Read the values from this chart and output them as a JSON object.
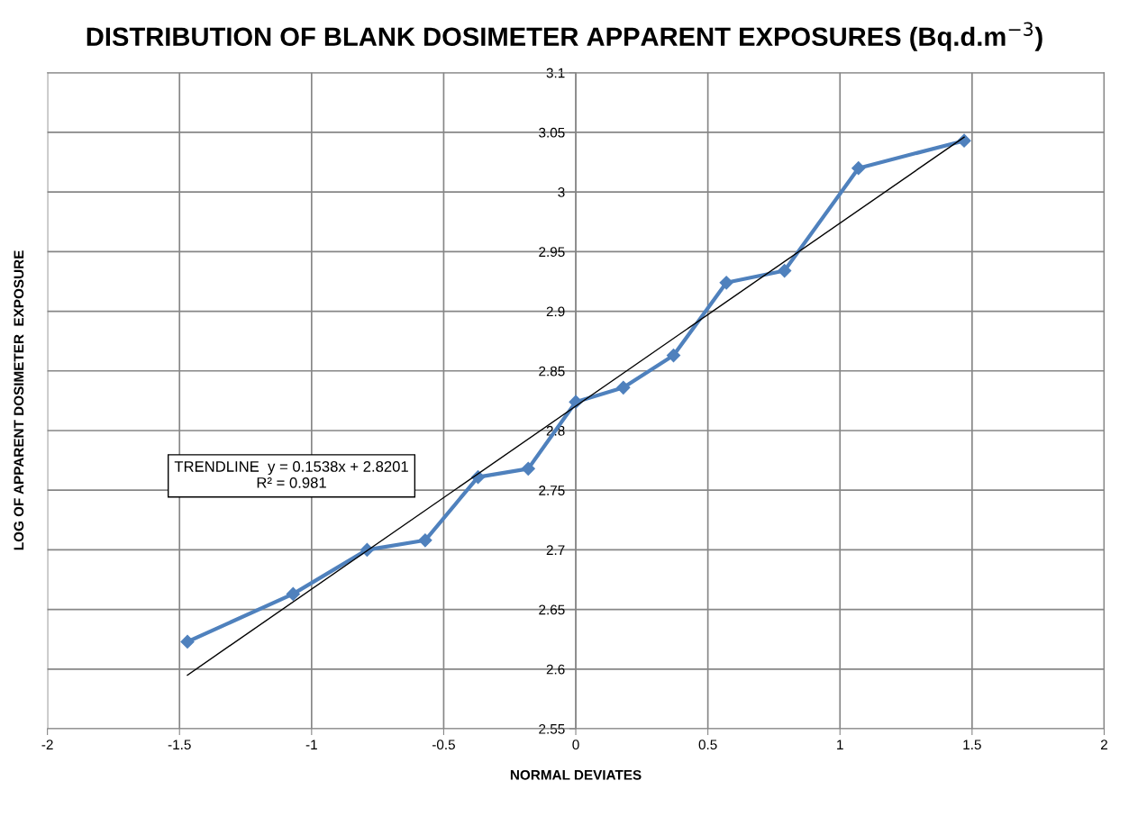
{
  "chart_data": {
    "type": "line",
    "title": "DISTRIBUTION OF BLANK DOSIMETER APPARENT EXPOSURES (Bq.d.m$^{−3}$)",
    "xlabel": "NORMAL DEVIATES",
    "ylabel": "LOG OF APPARENT DOSIMETER  EXPOSURE",
    "x": [
      -1.47,
      -1.07,
      -0.79,
      -0.57,
      -0.37,
      -0.18,
      0,
      0.18,
      0.37,
      0.57,
      0.79,
      1.07,
      1.47
    ],
    "series": [
      {
        "type": "line",
        "color": "#4f81bd",
        "marker": "diamond",
        "values": [
          2.623,
          2.663,
          2.7,
          2.708,
          2.761,
          2.768,
          2.824,
          2.836,
          2.863,
          2.924,
          2.934,
          3.02,
          3.043
        ]
      },
      {
        "type": "line",
        "color": "#000000",
        "marker": "none",
        "x": [
          -1.47,
          1.47
        ],
        "values": [
          2.595,
          3.046
        ]
      }
    ],
    "annotations": [
      "TRENDLINE  y = 0.1538x + 2.8201\nR² = 0.981"
    ],
    "xlim": [
      -2,
      2
    ],
    "xticks": [
      -2,
      -1.5,
      -1,
      -0.5,
      0,
      0.5,
      1,
      1.5,
      2
    ],
    "ylim": [
      2.55,
      3.1
    ],
    "yticks": [
      2.55,
      2.6,
      2.65,
      2.7,
      2.75,
      2.8,
      2.85,
      2.9,
      2.95,
      3,
      3.05,
      3.1
    ],
    "grid": true
  }
}
